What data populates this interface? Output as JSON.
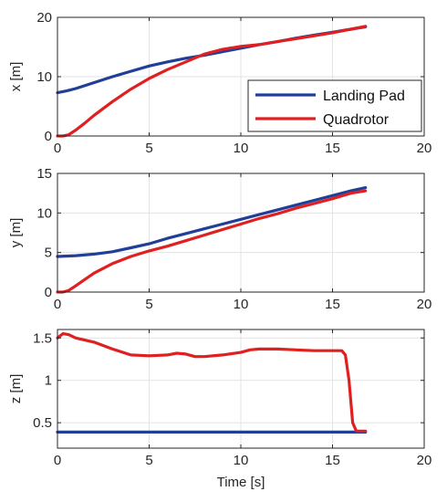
{
  "chart_data": [
    {
      "type": "line",
      "ylabel": "x [m]",
      "xlabel": "",
      "xlim": [
        0,
        20
      ],
      "ylim": [
        0,
        20
      ],
      "xticks": [
        "0",
        "5",
        "10",
        "15",
        "20"
      ],
      "yticks": [
        "0",
        "10",
        "20"
      ],
      "grid": true,
      "legend": "bottom-right",
      "series": [
        {
          "name": "Landing Pad",
          "color": "#1f3f99",
          "x": [
            0,
            0.5,
            1,
            2,
            3,
            4,
            5,
            6,
            7,
            8,
            9,
            10,
            11,
            12,
            13,
            14,
            15,
            16,
            16.8
          ],
          "y": [
            7.3,
            7.6,
            8.0,
            9.0,
            10.0,
            10.9,
            11.8,
            12.5,
            13.1,
            13.6,
            14.2,
            14.8,
            15.4,
            15.9,
            16.5,
            17.0,
            17.5,
            18.0,
            18.4
          ]
        },
        {
          "name": "Quadrotor",
          "color": "#e02020",
          "x": [
            0,
            0.3,
            0.6,
            1,
            1.5,
            2,
            3,
            4,
            5,
            6,
            7,
            8,
            9,
            10,
            11,
            12,
            13,
            14,
            15,
            16,
            16.8
          ],
          "y": [
            0,
            0,
            0.2,
            1.0,
            2.2,
            3.5,
            5.8,
            7.9,
            9.7,
            11.2,
            12.5,
            13.8,
            14.6,
            15.1,
            15.4,
            15.9,
            16.4,
            16.9,
            17.4,
            18.0,
            18.5
          ]
        }
      ]
    },
    {
      "type": "line",
      "ylabel": "y [m]",
      "xlabel": "",
      "xlim": [
        0,
        20
      ],
      "ylim": [
        0,
        15
      ],
      "xticks": [
        "0",
        "5",
        "10",
        "15",
        "20"
      ],
      "yticks": [
        "0",
        "5",
        "10",
        "15"
      ],
      "grid": true,
      "series": [
        {
          "name": "Landing Pad",
          "color": "#1f3f99",
          "x": [
            0,
            1,
            2,
            3,
            4,
            5,
            6,
            7,
            8,
            9,
            10,
            11,
            12,
            13,
            14,
            15,
            16,
            16.8
          ],
          "y": [
            4.5,
            4.6,
            4.8,
            5.1,
            5.6,
            6.1,
            6.8,
            7.4,
            8.0,
            8.6,
            9.2,
            9.8,
            10.4,
            11.0,
            11.6,
            12.2,
            12.8,
            13.2
          ]
        },
        {
          "name": "Quadrotor",
          "color": "#e02020",
          "x": [
            0,
            0.3,
            0.6,
            1,
            1.5,
            2,
            3,
            4,
            5,
            6,
            7,
            8,
            9,
            10,
            11,
            12,
            13,
            14,
            15,
            16,
            16.8
          ],
          "y": [
            0,
            0,
            0.2,
            0.8,
            1.6,
            2.4,
            3.6,
            4.5,
            5.2,
            5.8,
            6.5,
            7.2,
            7.9,
            8.6,
            9.3,
            9.9,
            10.6,
            11.2,
            11.8,
            12.5,
            12.8
          ]
        }
      ]
    },
    {
      "type": "line",
      "ylabel": "z [m]",
      "xlabel": "Time [s]",
      "xlim": [
        0,
        20
      ],
      "ylim": [
        0.2,
        1.6
      ],
      "xticks": [
        "0",
        "5",
        "10",
        "15",
        "20"
      ],
      "yticks": [
        "0.5",
        "1",
        "1.5"
      ],
      "grid": true,
      "series": [
        {
          "name": "Landing Pad",
          "color": "#1f3f99",
          "x": [
            0,
            16.8
          ],
          "y": [
            0.39,
            0.39
          ]
        },
        {
          "name": "Quadrotor",
          "color": "#e02020",
          "x": [
            0,
            0.3,
            0.6,
            1,
            2,
            3,
            4,
            5,
            6,
            6.5,
            7,
            7.5,
            8,
            9,
            10,
            10.5,
            11,
            12,
            13,
            14,
            15,
            15.5,
            15.7,
            15.9,
            16.1,
            16.3,
            16.8
          ],
          "y": [
            1.5,
            1.55,
            1.54,
            1.5,
            1.45,
            1.37,
            1.3,
            1.29,
            1.3,
            1.32,
            1.31,
            1.28,
            1.28,
            1.3,
            1.33,
            1.36,
            1.37,
            1.37,
            1.36,
            1.35,
            1.35,
            1.35,
            1.3,
            1.0,
            0.5,
            0.4,
            0.4
          ]
        }
      ]
    }
  ]
}
